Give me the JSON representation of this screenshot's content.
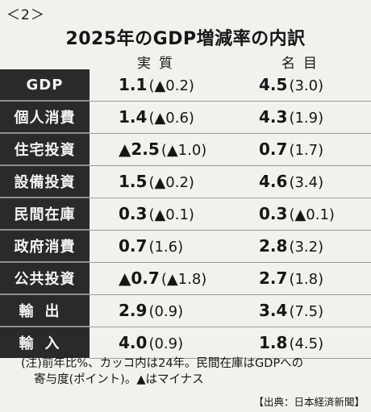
{
  "figure_label": "＜2＞",
  "title": "2025年のGDP増減率の内訳",
  "columns": {
    "real": "実質",
    "nominal": "名目"
  },
  "rows": [
    {
      "label": "GDP",
      "real": "1.1",
      "real_paren": "(▲0.2)",
      "nominal": "4.5",
      "nominal_paren": "(3.0)"
    },
    {
      "label": "個人消費",
      "real": "1.4",
      "real_paren": "(▲0.6)",
      "nominal": "4.3",
      "nominal_paren": "(1.9)"
    },
    {
      "label": "住宅投資",
      "real": "▲2.5",
      "real_paren": "(▲1.0)",
      "nominal": "0.7",
      "nominal_paren": "(1.7)"
    },
    {
      "label": "設備投資",
      "real": "1.5",
      "real_paren": "(▲0.2)",
      "nominal": "4.6",
      "nominal_paren": "(3.4)"
    },
    {
      "label": "民間在庫",
      "real": "0.3",
      "real_paren": "(▲0.1)",
      "nominal": "0.3",
      "nominal_paren": "(▲0.1)"
    },
    {
      "label": "政府消費",
      "real": "0.7",
      "real_paren": "(1.6)",
      "nominal": "2.8",
      "nominal_paren": "(3.2)"
    },
    {
      "label": "公共投資",
      "real": "▲0.7",
      "real_paren": "(▲1.8)",
      "nominal": "2.7",
      "nominal_paren": "(1.8)"
    },
    {
      "label": "輸出",
      "real": "2.9",
      "real_paren": "(0.9)",
      "nominal": "3.4",
      "nominal_paren": "(7.5)"
    },
    {
      "label": "輸入",
      "real": "4.0",
      "real_paren": "(0.9)",
      "nominal": "1.8",
      "nominal_paren": "(4.5)"
    }
  ],
  "note_line1": "(注)前年比%、カッコ内は24年。民間在庫はGDPへの",
  "note_line2": "寄与度(ポイント)。▲はマイナス",
  "source": "【出典：日本経済新聞】"
}
